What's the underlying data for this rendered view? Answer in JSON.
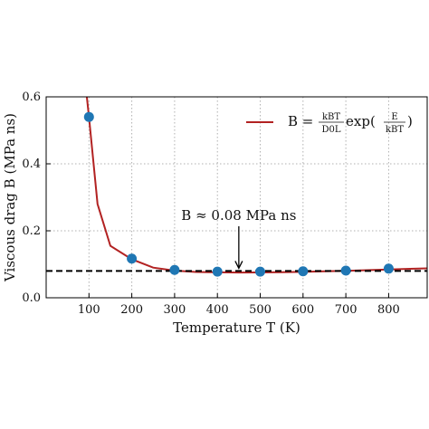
{
  "chart_data": {
    "type": "line",
    "xlabel": "Temperature T (K)",
    "ylabel": "Viscous drag B (MPa ns)",
    "xlim": [
      0,
      890
    ],
    "ylim": [
      0,
      0.6
    ],
    "x_ticks": [
      100,
      200,
      300,
      400,
      500,
      600,
      700,
      800
    ],
    "y_ticks": [
      0.0,
      0.2,
      0.4,
      0.6
    ],
    "x_tick_labels": [
      "100",
      "200",
      "300",
      "400",
      "500",
      "600",
      "700",
      "800"
    ],
    "y_tick_labels": [
      "0.0",
      "0.2",
      "0.4",
      "0.6"
    ],
    "grid": true,
    "legend_position": "top-right",
    "series": [
      {
        "name": "B = (kB T / D0 L) exp(E / kB T)",
        "kind": "fit-curve",
        "color": "#b22222",
        "x": [
          95,
          100,
          120,
          150,
          200,
          250,
          300,
          350,
          400,
          450,
          500,
          550,
          600,
          650,
          700,
          750,
          800,
          850,
          890
        ],
        "y": [
          0.6,
          0.54,
          0.28,
          0.155,
          0.115,
          0.09,
          0.081,
          0.077,
          0.076,
          0.0755,
          0.0757,
          0.0765,
          0.0775,
          0.079,
          0.0805,
          0.0825,
          0.0845,
          0.0865,
          0.088
        ]
      },
      {
        "kind": "markers",
        "color": "#1f77b4",
        "x": [
          100,
          200,
          300,
          400,
          500,
          600,
          700,
          800
        ],
        "y": [
          0.54,
          0.117,
          0.083,
          0.078,
          0.078,
          0.079,
          0.081,
          0.087
        ]
      },
      {
        "kind": "reference-line",
        "color": "#000000",
        "y": 0.08
      }
    ],
    "annotations": [
      {
        "text": "B ≈ 0.08 MPa ns",
        "arrow_to": [
          450,
          0.08
        ]
      }
    ],
    "legend": {
      "lhs": "B =",
      "frac1_num": "kBT",
      "frac1_den": "D0L",
      "exp": "exp(",
      "frac2_num": "E",
      "frac2_den": "kBT",
      "close": ")"
    }
  }
}
